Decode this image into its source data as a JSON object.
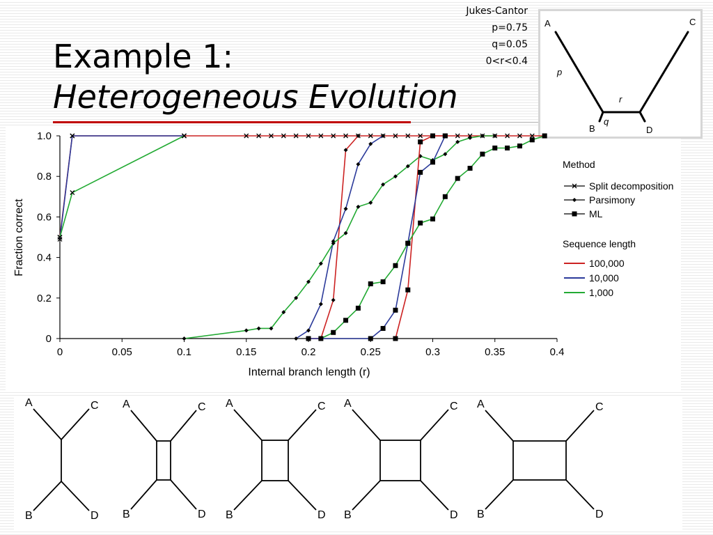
{
  "slide": {
    "title_line1": "Example 1:",
    "title_line2": "Heterogeneous Evolution",
    "accent_color": "#c00000"
  },
  "params": {
    "model": "Jukes-Cantor",
    "p": "p=0.75",
    "q": "q=0.05",
    "r_range": "0<r<0.4"
  },
  "inset_tree": {
    "leaves": [
      "A",
      "B",
      "C",
      "D"
    ],
    "branch_labels": [
      "p",
      "q",
      "r"
    ]
  },
  "chart_data": {
    "type": "line",
    "title": "",
    "xlabel": "Internal branch length (r)",
    "ylabel": "Fraction correct",
    "xlim": [
      0,
      0.4
    ],
    "ylim": [
      0,
      1
    ],
    "x_ticks": [
      "0",
      "0.05",
      "0.1",
      "0.15",
      "0.2",
      "0.25",
      "0.3",
      "0.35",
      "0.4"
    ],
    "y_ticks": [
      "0",
      "0.2",
      "0.4",
      "0.6",
      "0.8",
      "1.0"
    ],
    "legend": {
      "method_title": "Method",
      "methods": [
        {
          "name": "Split decomposition",
          "marker": "x"
        },
        {
          "name": "Parsimony",
          "marker": "diamond"
        },
        {
          "name": "ML",
          "marker": "square"
        }
      ],
      "length_title": "Sequence length",
      "lengths": [
        {
          "name": "100,000",
          "color": "#cc2222"
        },
        {
          "name": "10,000",
          "color": "#2b3a9a"
        },
        {
          "name": "1,000",
          "color": "#22aa33"
        }
      ]
    },
    "series": [
      {
        "method": "Split decomposition",
        "length": "100,000",
        "color": "#cc2222",
        "marker": "x",
        "points": [
          [
            0,
            0.5
          ],
          [
            0.01,
            1
          ],
          [
            0.1,
            1
          ],
          [
            0.15,
            1
          ],
          [
            0.16,
            1
          ],
          [
            0.17,
            1
          ],
          [
            0.18,
            1
          ],
          [
            0.19,
            1
          ],
          [
            0.2,
            1
          ],
          [
            0.21,
            1
          ],
          [
            0.22,
            1
          ],
          [
            0.23,
            1
          ],
          [
            0.24,
            1
          ],
          [
            0.25,
            1
          ],
          [
            0.26,
            1
          ],
          [
            0.27,
            1
          ],
          [
            0.28,
            1
          ],
          [
            0.29,
            1
          ],
          [
            0.3,
            1
          ],
          [
            0.31,
            1
          ],
          [
            0.32,
            1
          ],
          [
            0.33,
            1
          ],
          [
            0.34,
            1
          ],
          [
            0.35,
            1
          ],
          [
            0.36,
            1
          ],
          [
            0.37,
            1
          ],
          [
            0.38,
            1
          ],
          [
            0.39,
            1
          ]
        ]
      },
      {
        "method": "Split decomposition",
        "length": "10,000",
        "color": "#2b3a9a",
        "marker": "x",
        "points": [
          [
            0,
            0.49
          ],
          [
            0.01,
            1
          ],
          [
            0.1,
            1
          ]
        ]
      },
      {
        "method": "Split decomposition",
        "length": "1,000",
        "color": "#22aa33",
        "marker": "x",
        "points": [
          [
            0,
            0.5
          ],
          [
            0.01,
            0.72
          ],
          [
            0.1,
            1
          ]
        ]
      },
      {
        "method": "Parsimony",
        "length": "100,000",
        "color": "#cc2222",
        "marker": "diamond",
        "points": [
          [
            0.2,
            0
          ],
          [
            0.21,
            0
          ],
          [
            0.22,
            0.19
          ],
          [
            0.23,
            0.93
          ],
          [
            0.24,
            1
          ]
        ]
      },
      {
        "method": "Parsimony",
        "length": "10,000",
        "color": "#2b3a9a",
        "marker": "diamond",
        "points": [
          [
            0.19,
            0
          ],
          [
            0.2,
            0.04
          ],
          [
            0.21,
            0.17
          ],
          [
            0.22,
            0.48
          ],
          [
            0.23,
            0.64
          ],
          [
            0.24,
            0.86
          ],
          [
            0.25,
            0.96
          ],
          [
            0.26,
            1
          ]
        ]
      },
      {
        "method": "Parsimony",
        "length": "1,000",
        "color": "#22aa33",
        "marker": "diamond",
        "points": [
          [
            0.1,
            0
          ],
          [
            0.15,
            0.04
          ],
          [
            0.16,
            0.05
          ],
          [
            0.17,
            0.05
          ],
          [
            0.18,
            0.13
          ],
          [
            0.19,
            0.2
          ],
          [
            0.2,
            0.28
          ],
          [
            0.21,
            0.37
          ],
          [
            0.22,
            0.47
          ],
          [
            0.23,
            0.52
          ],
          [
            0.24,
            0.65
          ],
          [
            0.25,
            0.67
          ],
          [
            0.26,
            0.76
          ],
          [
            0.27,
            0.8
          ],
          [
            0.28,
            0.85
          ],
          [
            0.29,
            0.9
          ],
          [
            0.3,
            0.88
          ],
          [
            0.31,
            0.91
          ],
          [
            0.32,
            0.97
          ],
          [
            0.33,
            0.99
          ],
          [
            0.34,
            1
          ],
          [
            0.35,
            1
          ]
        ]
      },
      {
        "method": "ML",
        "length": "100,000",
        "color": "#cc2222",
        "marker": "square",
        "points": [
          [
            0.27,
            0
          ],
          [
            0.28,
            0.24
          ],
          [
            0.29,
            0.97
          ],
          [
            0.3,
            1
          ],
          [
            0.31,
            1
          ]
        ]
      },
      {
        "method": "ML",
        "length": "10,000",
        "color": "#2b3a9a",
        "marker": "square",
        "points": [
          [
            0.2,
            0
          ],
          [
            0.25,
            0
          ],
          [
            0.26,
            0.05
          ],
          [
            0.27,
            0.14
          ],
          [
            0.28,
            0.47
          ],
          [
            0.29,
            0.82
          ],
          [
            0.3,
            0.87
          ],
          [
            0.31,
            1
          ]
        ]
      },
      {
        "method": "ML",
        "length": "1,000",
        "color": "#22aa33",
        "marker": "square",
        "points": [
          [
            0.21,
            0
          ],
          [
            0.22,
            0.03
          ],
          [
            0.23,
            0.09
          ],
          [
            0.24,
            0.15
          ],
          [
            0.25,
            0.27
          ],
          [
            0.26,
            0.28
          ],
          [
            0.27,
            0.36
          ],
          [
            0.28,
            0.47
          ],
          [
            0.29,
            0.57
          ],
          [
            0.3,
            0.59
          ],
          [
            0.31,
            0.7
          ],
          [
            0.32,
            0.79
          ],
          [
            0.33,
            0.84
          ],
          [
            0.34,
            0.91
          ],
          [
            0.35,
            0.94
          ],
          [
            0.36,
            0.94
          ],
          [
            0.37,
            0.95
          ],
          [
            0.38,
            0.98
          ],
          [
            0.39,
            1
          ]
        ]
      }
    ]
  },
  "tree_series": {
    "trees": [
      {
        "leaves": [
          "A",
          "C",
          "B",
          "D"
        ]
      },
      {
        "leaves": [
          "A",
          "C",
          "B",
          "D"
        ]
      },
      {
        "leaves": [
          "A",
          "C",
          "B",
          "D"
        ]
      },
      {
        "leaves": [
          "A",
          "C",
          "B",
          "D"
        ]
      },
      {
        "leaves": [
          "A",
          "C",
          "B",
          "D"
        ]
      }
    ]
  }
}
